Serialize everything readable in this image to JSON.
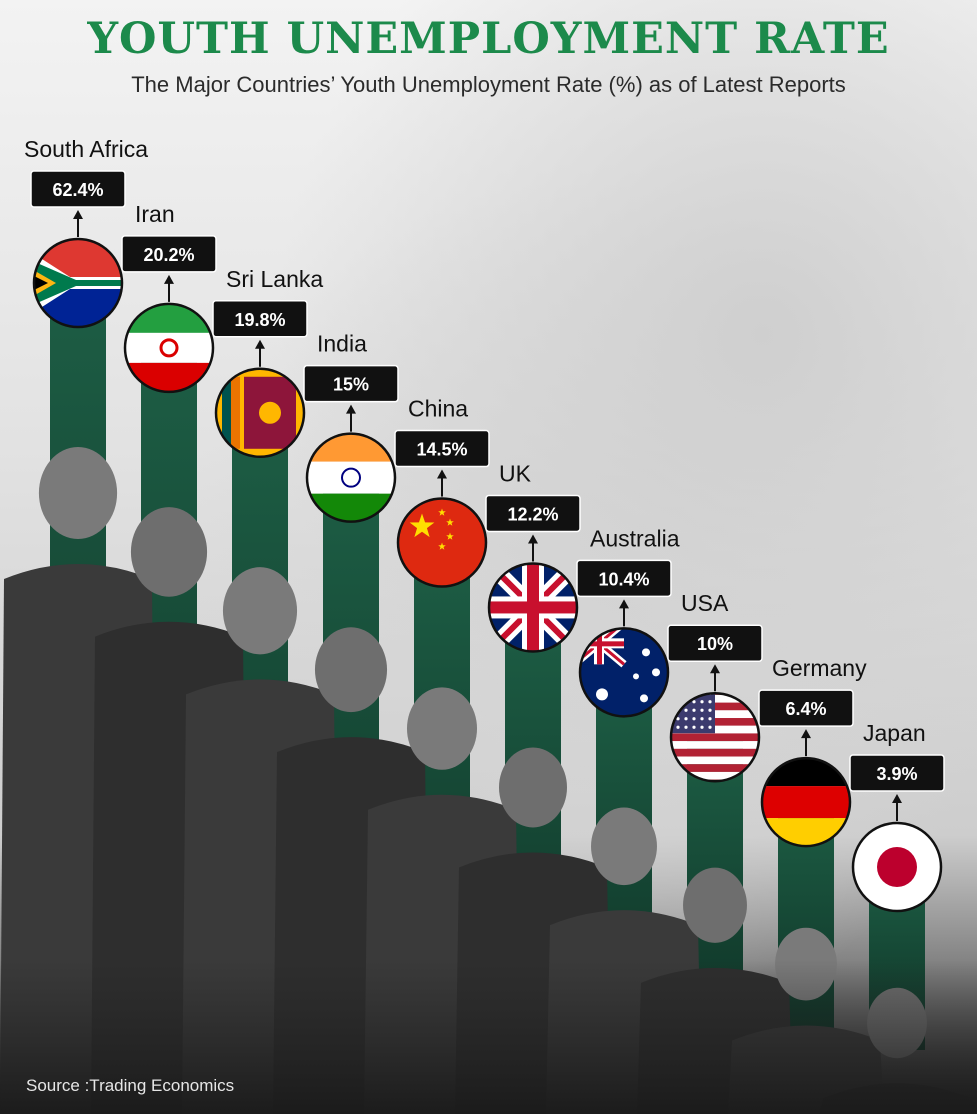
{
  "title": "YOUTH UNEMPLOYMENT RATE",
  "subtitle": "The Major Countries’ Youth Unemployment Rate (%) as of Latest Reports",
  "source": "Source :Trading Economics",
  "colors": {
    "title": "#1c8a4b",
    "bar_top": "#1c5a43",
    "bar_bottom": "#0f3327",
    "label_bg": "#111111"
  },
  "chart_data": {
    "type": "bar",
    "title": "YOUTH UNEMPLOYMENT RATE",
    "subtitle": "The Major Countries’ Youth Unemployment Rate (%) as of Latest Reports",
    "categories": [
      "South Africa",
      "Iran",
      "Sri Lanka",
      "India",
      "China",
      "UK",
      "Australia",
      "USA",
      "Germany",
      "Japan"
    ],
    "values": [
      62.4,
      20.2,
      19.8,
      15,
      14.5,
      12.2,
      10.4,
      10,
      6.4,
      3.9
    ],
    "value_labels": [
      "62.4%",
      "20.2%",
      "19.8%",
      "15%",
      "14.5%",
      "12.2%",
      "10.4%",
      "10%",
      "6.4%",
      "3.9%"
    ],
    "unit": "%",
    "flags": [
      "flag-south-africa-icon",
      "flag-iran-icon",
      "flag-sri-lanka-icon",
      "flag-india-icon",
      "flag-china-icon",
      "flag-uk-icon",
      "flag-australia-icon",
      "flag-usa-icon",
      "flag-germany-icon",
      "flag-japan-icon"
    ],
    "xlabel": "",
    "ylabel": "",
    "grid": false,
    "legend": "none"
  }
}
